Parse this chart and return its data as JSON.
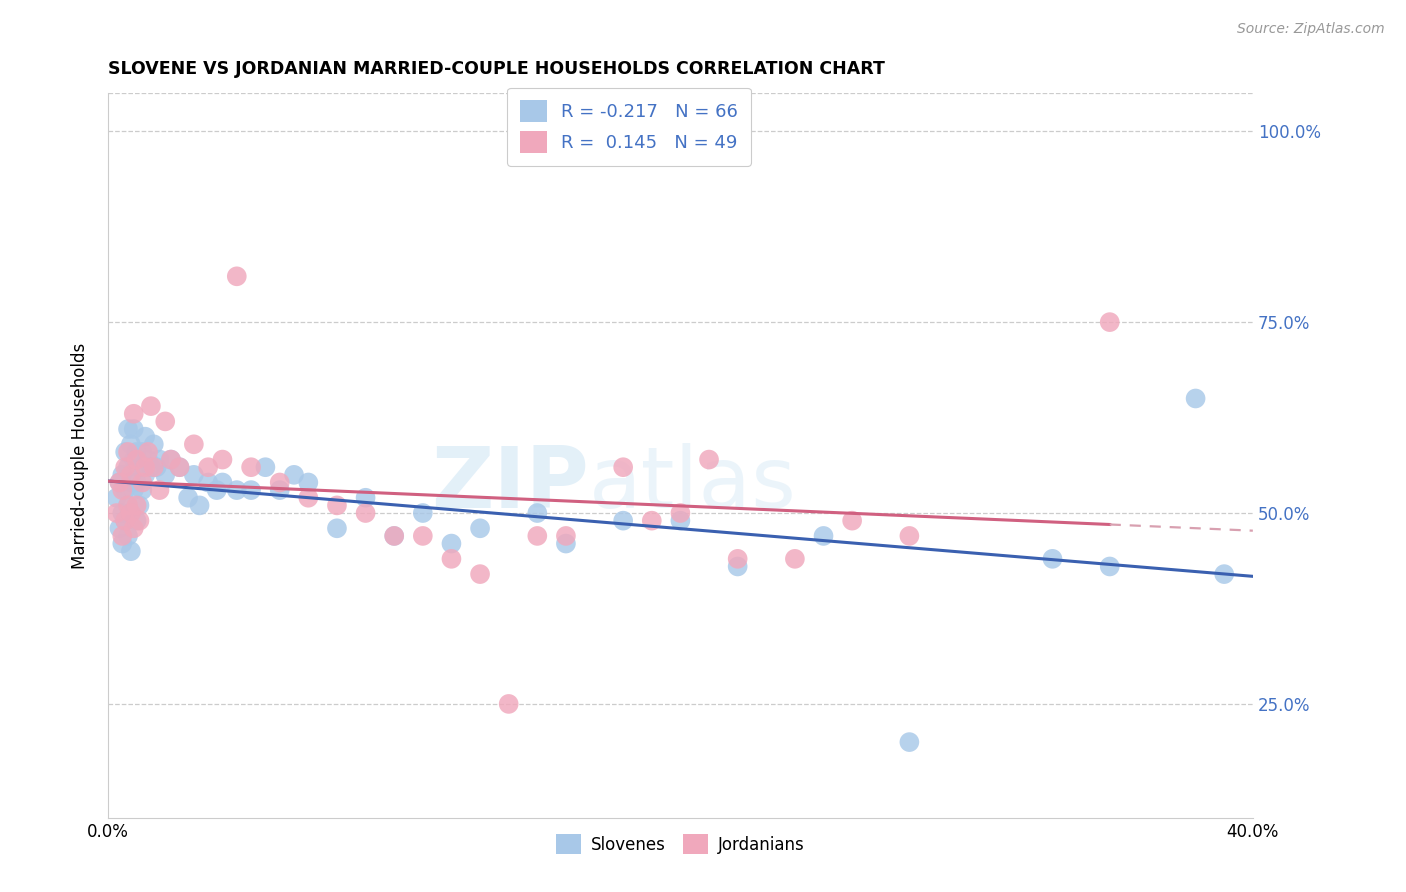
{
  "title": "SLOVENE VS JORDANIAN MARRIED-COUPLE HOUSEHOLDS CORRELATION CHART",
  "source": "Source: ZipAtlas.com",
  "ylabel": "Married-couple Households",
  "ytick_labels": [
    "25.0%",
    "50.0%",
    "75.0%",
    "100.0%"
  ],
  "ytick_vals": [
    0.25,
    0.5,
    0.75,
    1.0
  ],
  "xmin": 0.0,
  "xmax": 0.4,
  "ymin": 0.1,
  "ymax": 1.05,
  "slovene_r": "-0.217",
  "slovene_n": "66",
  "jordanian_r": "0.145",
  "jordanian_n": "49",
  "slovene_dot_color": "#a8c8e8",
  "jordanian_dot_color": "#f0a8bc",
  "slovene_line_color": "#3a60b0",
  "jordanian_line_color": "#d06080",
  "jordanian_dash_color": "#d8a0b0",
  "watermark_text": "ZIPatlas",
  "slovene_label": "Slovenes",
  "jordanian_label": "Jordanians",
  "slovene_x": [
    0.003,
    0.004,
    0.004,
    0.005,
    0.005,
    0.005,
    0.006,
    0.006,
    0.006,
    0.007,
    0.007,
    0.007,
    0.007,
    0.008,
    0.008,
    0.008,
    0.008,
    0.009,
    0.009,
    0.009,
    0.01,
    0.01,
    0.01,
    0.011,
    0.011,
    0.012,
    0.012,
    0.013,
    0.013,
    0.014,
    0.015,
    0.016,
    0.017,
    0.018,
    0.02,
    0.022,
    0.025,
    0.028,
    0.03,
    0.032,
    0.035,
    0.038,
    0.04,
    0.045,
    0.05,
    0.055,
    0.06,
    0.065,
    0.07,
    0.08,
    0.09,
    0.1,
    0.11,
    0.12,
    0.13,
    0.15,
    0.16,
    0.18,
    0.2,
    0.22,
    0.25,
    0.28,
    0.33,
    0.35,
    0.38,
    0.39
  ],
  "slovene_y": [
    0.52,
    0.48,
    0.54,
    0.5,
    0.55,
    0.46,
    0.53,
    0.58,
    0.49,
    0.51,
    0.56,
    0.61,
    0.47,
    0.54,
    0.59,
    0.5,
    0.45,
    0.53,
    0.57,
    0.61,
    0.49,
    0.54,
    0.58,
    0.51,
    0.56,
    0.53,
    0.58,
    0.55,
    0.6,
    0.57,
    0.56,
    0.59,
    0.56,
    0.57,
    0.55,
    0.57,
    0.56,
    0.52,
    0.55,
    0.51,
    0.54,
    0.53,
    0.54,
    0.53,
    0.53,
    0.56,
    0.53,
    0.55,
    0.54,
    0.48,
    0.52,
    0.47,
    0.5,
    0.46,
    0.48,
    0.5,
    0.46,
    0.49,
    0.49,
    0.43,
    0.47,
    0.2,
    0.44,
    0.43,
    0.65,
    0.42
  ],
  "jordanian_x": [
    0.003,
    0.004,
    0.005,
    0.005,
    0.006,
    0.006,
    0.007,
    0.007,
    0.008,
    0.008,
    0.009,
    0.009,
    0.01,
    0.01,
    0.011,
    0.012,
    0.013,
    0.014,
    0.015,
    0.016,
    0.018,
    0.02,
    0.022,
    0.025,
    0.03,
    0.035,
    0.04,
    0.045,
    0.05,
    0.06,
    0.07,
    0.08,
    0.09,
    0.1,
    0.11,
    0.12,
    0.13,
    0.14,
    0.15,
    0.16,
    0.18,
    0.19,
    0.2,
    0.21,
    0.22,
    0.24,
    0.26,
    0.28,
    0.35
  ],
  "jordanian_y": [
    0.5,
    0.54,
    0.47,
    0.53,
    0.49,
    0.56,
    0.51,
    0.58,
    0.5,
    0.55,
    0.48,
    0.63,
    0.51,
    0.57,
    0.49,
    0.54,
    0.56,
    0.58,
    0.64,
    0.56,
    0.53,
    0.62,
    0.57,
    0.56,
    0.59,
    0.56,
    0.57,
    0.81,
    0.56,
    0.54,
    0.52,
    0.51,
    0.5,
    0.47,
    0.47,
    0.44,
    0.42,
    0.25,
    0.47,
    0.47,
    0.56,
    0.49,
    0.5,
    0.57,
    0.44,
    0.44,
    0.49,
    0.47,
    0.75
  ]
}
